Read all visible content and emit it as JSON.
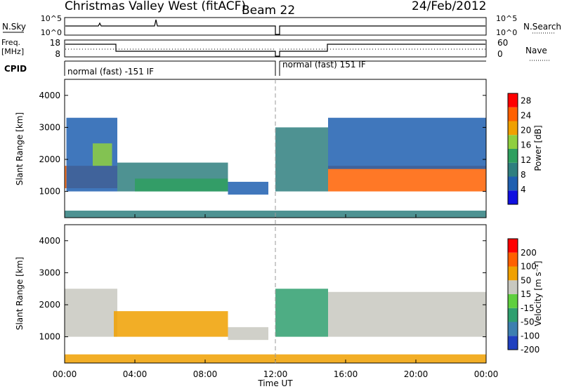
{
  "title": {
    "station": "Christmas Valley West (fitACF)",
    "beam": "Beam 22",
    "date": "24/Feb/2012"
  },
  "header_panels": {
    "nsky": {
      "left_label": "N.Sky",
      "left_ticks": [
        "10^5",
        "10^0"
      ],
      "right_label": "N.Search",
      "right_ticks": [
        "10^5",
        "10^0"
      ]
    },
    "freq": {
      "left_label_lines": [
        "Freq.",
        "[MHz]"
      ],
      "left_ticks": [
        "18",
        "8"
      ],
      "right_label": "Nave",
      "right_ticks": [
        "60",
        "0"
      ]
    },
    "cpid": {
      "label": "CPID",
      "segments": [
        {
          "text": "normal (fast) -151 IF",
          "start_hour": 0,
          "end_hour": 12
        },
        {
          "text": "normal (fast) 151 IF",
          "start_hour": 12,
          "end_hour": 24
        }
      ]
    }
  },
  "chart_data": [
    {
      "type": "heatmap",
      "name": "power-panel",
      "ylabel": "Slant Range [km]",
      "ylim": [
        180,
        4500
      ],
      "yticks": [
        "1000",
        "2000",
        "3000",
        "4000"
      ],
      "xlim_hours": [
        0,
        24
      ],
      "colorbar": {
        "label": "Power [dB]",
        "ticks": [
          "4",
          "8",
          "12",
          "16",
          "20",
          "24",
          "28"
        ],
        "range": [
          0,
          30
        ],
        "colors": [
          "#1010e0",
          "#1f5fb0",
          "#2f7f7f",
          "#2f9f5f",
          "#8fcf3f",
          "#f0a000",
          "#ff6000",
          "#ff0000"
        ]
      },
      "regions": [
        {
          "t": [
            0.0,
            3.0
          ],
          "r": [
            1100,
            1800
          ],
          "level": 24
        },
        {
          "t": [
            0.1,
            3.0
          ],
          "r": [
            1000,
            3300
          ],
          "level": 6
        },
        {
          "t": [
            1.6,
            2.7
          ],
          "r": [
            1800,
            2500
          ],
          "level": 16
        },
        {
          "t": [
            3.0,
            9.3
          ],
          "r": [
            1000,
            1900
          ],
          "level": 9
        },
        {
          "t": [
            4.0,
            9.3
          ],
          "r": [
            1000,
            1400
          ],
          "level": 14
        },
        {
          "t": [
            9.3,
            11.6
          ],
          "r": [
            900,
            1300
          ],
          "level": 6
        },
        {
          "t": [
            12.0,
            15.0
          ],
          "r": [
            1000,
            3000
          ],
          "level": 8
        },
        {
          "t": [
            15.0,
            24.0
          ],
          "r": [
            1000,
            1800
          ],
          "level": 26
        },
        {
          "t": [
            15.0,
            24.0
          ],
          "r": [
            1700,
            3300
          ],
          "level": 6
        },
        {
          "t": [
            0.0,
            24.0
          ],
          "r": [
            180,
            400
          ],
          "level": 10
        }
      ]
    },
    {
      "type": "heatmap",
      "name": "velocity-panel",
      "ylabel": "Slant Range [km]",
      "ylim": [
        180,
        4500
      ],
      "yticks": [
        "1000",
        "2000",
        "3000",
        "4000"
      ],
      "xlim_hours": [
        0,
        24
      ],
      "xticks": [
        "00:00",
        "04:00",
        "08:00",
        "12:00",
        "16:00",
        "20:00",
        "00:00"
      ],
      "xlabel": "Time UT",
      "colorbar": {
        "label": "Velocity [m s⁻¹]",
        "ticks": [
          "200",
          "100",
          "50",
          "15",
          "-15",
          "-50",
          "-100",
          "-200"
        ],
        "colors": [
          "#2040c0",
          "#3d7fb0",
          "#2f9f6f",
          "#5fcf3f",
          "#c8c8c0",
          "#f0a000",
          "#ff6000",
          "#ff0000"
        ]
      },
      "regions": [
        {
          "t": [
            0.0,
            3.0
          ],
          "r": [
            1000,
            2500
          ],
          "velocity": 0
        },
        {
          "t": [
            2.8,
            9.3
          ],
          "r": [
            1000,
            1800
          ],
          "velocity": -40
        },
        {
          "t": [
            9.3,
            11.6
          ],
          "r": [
            900,
            1300
          ],
          "velocity": 0
        },
        {
          "t": [
            12.0,
            15.0
          ],
          "r": [
            1000,
            2500
          ],
          "velocity": 60
        },
        {
          "t": [
            15.0,
            24.0
          ],
          "r": [
            1000,
            2400
          ],
          "velocity": 0
        },
        {
          "t": [
            0.0,
            24.0
          ],
          "r": [
            180,
            450
          ],
          "velocity": -40
        }
      ]
    }
  ]
}
